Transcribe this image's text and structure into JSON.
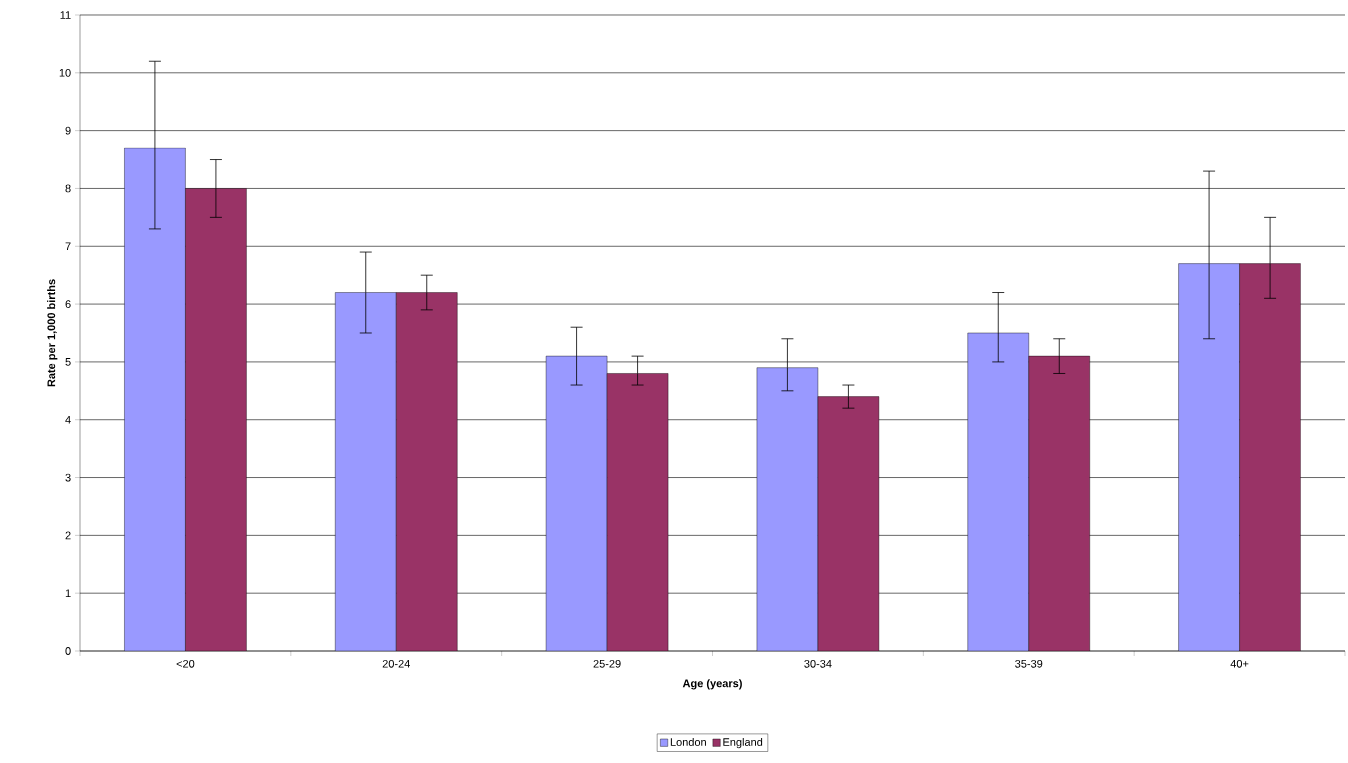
{
  "chart_data": {
    "type": "bar",
    "xlabel": "Age (years)",
    "ylabel": "Rate per 1,000 births",
    "categories": [
      "<20",
      "20-24",
      "25-29",
      "30-34",
      "35-39",
      "40+"
    ],
    "series": [
      {
        "name": "London",
        "color": "#9999ff",
        "values": [
          8.7,
          6.2,
          5.1,
          4.9,
          5.5,
          6.7
        ],
        "errors": [
          [
            7.3,
            10.2
          ],
          [
            5.5,
            6.9
          ],
          [
            4.6,
            5.6
          ],
          [
            4.5,
            5.4
          ],
          [
            5.0,
            6.2
          ],
          [
            5.4,
            8.3
          ]
        ]
      },
      {
        "name": "England",
        "color": "#993366",
        "values": [
          8.0,
          6.2,
          4.8,
          4.4,
          5.1,
          6.7
        ],
        "errors": [
          [
            7.5,
            8.5
          ],
          [
            5.9,
            6.5
          ],
          [
            4.6,
            5.1
          ],
          [
            4.2,
            4.6
          ],
          [
            4.8,
            5.4
          ],
          [
            6.1,
            7.5
          ]
        ]
      }
    ],
    "ylim": [
      0,
      11
    ],
    "yticks": [
      0,
      1,
      2,
      3,
      4,
      5,
      6,
      7,
      8,
      9,
      10,
      11
    ],
    "grid": "y",
    "legend": "bottom"
  }
}
